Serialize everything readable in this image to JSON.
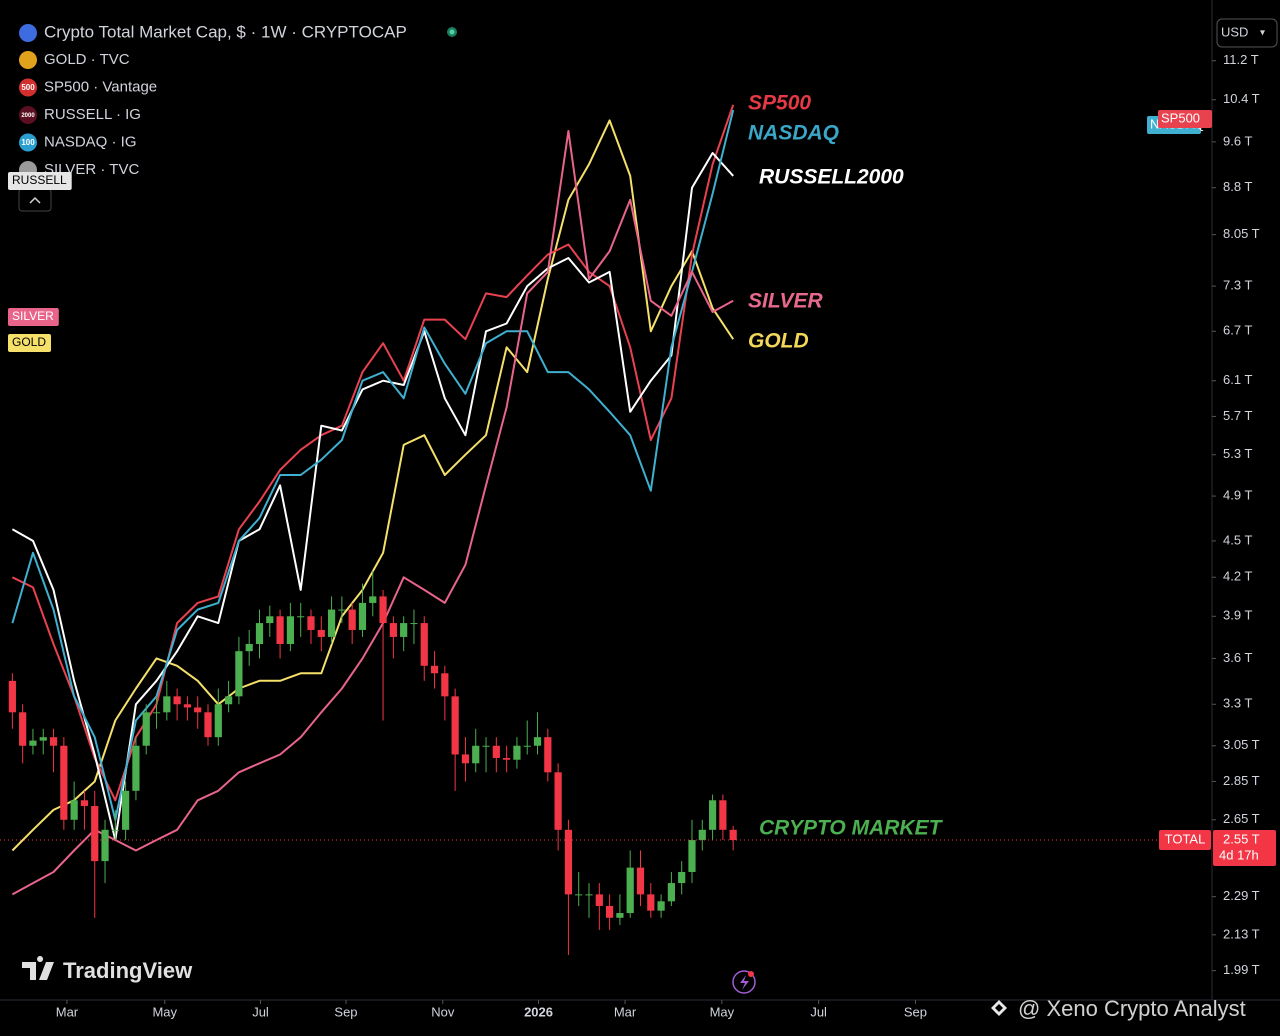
{
  "chart_data": {
    "type": "candlestick",
    "title": "Crypto Total Market Cap, $ · 1W · CRYPTOCAP",
    "currency": "USD",
    "log_scale": true,
    "up_color": "#4caf50",
    "down_color": "#f23645",
    "ylim": [
      1.9,
      12.1
    ],
    "yticks": [
      {
        "value": 11.2,
        "label": "11.2 T"
      },
      {
        "value": 10.4,
        "label": "10.4 T"
      },
      {
        "value": 9.6,
        "label": "9.6 T"
      },
      {
        "value": 8.8,
        "label": "8.8 T"
      },
      {
        "value": 8.05,
        "label": "8.05 T"
      },
      {
        "value": 7.3,
        "label": "7.3 T"
      },
      {
        "value": 6.7,
        "label": "6.7 T"
      },
      {
        "value": 6.1,
        "label": "6.1 T"
      },
      {
        "value": 5.7,
        "label": "5.7 T"
      },
      {
        "value": 5.3,
        "label": "5.3 T"
      },
      {
        "value": 4.9,
        "label": "4.9 T"
      },
      {
        "value": 4.5,
        "label": "4.5 T"
      },
      {
        "value": 4.2,
        "label": "4.2 T"
      },
      {
        "value": 3.9,
        "label": "3.9 T"
      },
      {
        "value": 3.6,
        "label": "3.6 T"
      },
      {
        "value": 3.3,
        "label": "3.3 T"
      },
      {
        "value": 3.05,
        "label": "3.05 T"
      },
      {
        "value": 2.85,
        "label": "2.85 T"
      },
      {
        "value": 2.65,
        "label": "2.65 T"
      },
      {
        "value": 2.29,
        "label": "2.29 T"
      },
      {
        "value": 2.13,
        "label": "2.13 T"
      },
      {
        "value": 1.99,
        "label": "1.99 T"
      }
    ],
    "xlim": [
      -1.2,
      116.5
    ],
    "xticks": [
      {
        "value": 5.3,
        "label": "Mar"
      },
      {
        "value": 14.8,
        "label": "May"
      },
      {
        "value": 24.1,
        "label": "Jul"
      },
      {
        "value": 32.4,
        "label": "Sep"
      },
      {
        "value": 41.8,
        "label": "Nov"
      },
      {
        "value": 51.1,
        "label": "2026"
      },
      {
        "value": 59.5,
        "label": "Mar"
      },
      {
        "value": 68.9,
        "label": "May"
      },
      {
        "value": 78.3,
        "label": "Jul"
      },
      {
        "value": 87.7,
        "label": "Sep"
      }
    ],
    "last_price": {
      "value": 2.55,
      "label": "2.55 T"
    },
    "last_name": "TOTAL",
    "countdown": "4d 17h",
    "x": [
      0,
      1,
      2,
      3,
      4,
      5,
      6,
      7,
      8,
      9,
      10,
      11,
      12,
      13,
      14,
      15,
      16,
      17,
      18,
      19,
      20,
      21,
      22,
      23,
      24,
      25,
      26,
      27,
      28,
      29,
      30,
      31,
      32,
      33,
      34,
      35,
      36,
      37,
      38,
      39,
      40,
      41,
      42,
      43,
      44,
      45,
      46,
      47,
      48,
      49,
      50,
      51,
      52,
      53,
      54,
      55,
      56,
      57,
      58,
      59,
      60,
      61,
      62,
      63,
      64,
      65,
      66,
      67,
      68,
      69,
      70
    ],
    "open": [
      3.45,
      3.25,
      3.05,
      3.08,
      3.1,
      3.05,
      2.65,
      2.75,
      2.72,
      2.45,
      2.6,
      2.6,
      2.8,
      3.05,
      3.25,
      3.25,
      3.35,
      3.3,
      3.28,
      3.25,
      3.1,
      3.3,
      3.35,
      3.65,
      3.7,
      3.85,
      3.9,
      3.7,
      3.9,
      3.9,
      3.8,
      3.75,
      3.95,
      3.95,
      3.8,
      4.0,
      4.05,
      3.85,
      3.75,
      3.85,
      3.85,
      3.55,
      3.5,
      3.35,
      3.0,
      2.95,
      3.05,
      3.05,
      2.98,
      2.97,
      3.05,
      3.05,
      3.1,
      2.9,
      2.6,
      2.3,
      2.3,
      2.3,
      2.25,
      2.2,
      2.22,
      2.42,
      2.3,
      2.23,
      2.27,
      2.35,
      2.4,
      2.55,
      2.6,
      2.75,
      2.6
    ],
    "high": [
      3.5,
      3.3,
      3.15,
      3.15,
      3.15,
      3.1,
      2.85,
      2.8,
      2.8,
      2.65,
      2.7,
      2.85,
      3.1,
      3.3,
      3.35,
      3.45,
      3.4,
      3.35,
      3.35,
      3.3,
      3.4,
      3.45,
      3.75,
      3.8,
      3.95,
      3.98,
      3.95,
      4.0,
      4.0,
      3.95,
      3.9,
      4.05,
      4.05,
      4.0,
      4.15,
      4.25,
      4.1,
      3.9,
      3.9,
      3.95,
      3.9,
      3.65,
      3.55,
      3.4,
      3.1,
      3.15,
      3.1,
      3.1,
      3.05,
      3.1,
      3.2,
      3.25,
      3.15,
      2.95,
      2.65,
      2.4,
      2.35,
      2.35,
      2.3,
      2.3,
      2.5,
      2.5,
      2.35,
      2.3,
      2.4,
      2.45,
      2.65,
      2.65,
      2.78,
      2.78,
      2.62
    ],
    "low": [
      3.15,
      2.95,
      3.0,
      3.0,
      2.9,
      2.6,
      2.6,
      2.6,
      2.2,
      2.35,
      2.55,
      2.55,
      2.75,
      3.0,
      3.15,
      3.2,
      3.2,
      3.2,
      3.15,
      3.05,
      3.05,
      3.25,
      3.3,
      3.55,
      3.6,
      3.75,
      3.6,
      3.65,
      3.75,
      3.7,
      3.65,
      3.7,
      3.85,
      3.7,
      3.75,
      3.9,
      3.2,
      3.6,
      3.65,
      3.7,
      3.45,
      3.4,
      3.2,
      2.8,
      2.85,
      2.9,
      2.9,
      2.9,
      2.9,
      2.92,
      3.0,
      3.0,
      2.85,
      2.5,
      2.05,
      2.25,
      2.2,
      2.15,
      2.15,
      2.17,
      2.2,
      2.25,
      2.2,
      2.2,
      2.25,
      2.3,
      2.35,
      2.5,
      2.55,
      2.55,
      2.5
    ],
    "close": [
      3.25,
      3.05,
      3.08,
      3.1,
      3.05,
      2.65,
      2.75,
      2.72,
      2.45,
      2.6,
      2.6,
      2.8,
      3.05,
      3.25,
      3.25,
      3.35,
      3.3,
      3.28,
      3.25,
      3.1,
      3.3,
      3.35,
      3.65,
      3.7,
      3.85,
      3.9,
      3.7,
      3.9,
      3.9,
      3.8,
      3.75,
      3.95,
      3.95,
      3.8,
      4.0,
      4.05,
      3.85,
      3.75,
      3.85,
      3.85,
      3.55,
      3.5,
      3.35,
      3.0,
      2.95,
      3.05,
      3.05,
      2.98,
      2.97,
      3.05,
      3.05,
      3.1,
      2.9,
      2.6,
      2.3,
      2.3,
      2.3,
      2.25,
      2.2,
      2.22,
      2.42,
      2.3,
      2.23,
      2.27,
      2.35,
      2.4,
      2.55,
      2.6,
      2.75,
      2.6,
      2.55
    ],
    "series": [
      {
        "name": "GOLD · TVC",
        "color": "#f5e06a",
        "icon_color": "#e0a21d",
        "x": [
          0,
          2,
          4,
          6,
          8,
          10,
          12,
          14,
          16,
          18,
          20,
          22,
          24,
          26,
          28,
          30,
          32,
          34,
          36,
          38,
          40,
          42,
          44,
          46,
          48,
          50,
          52,
          54,
          56,
          58,
          60,
          62,
          64,
          66,
          68,
          70
        ],
        "values": [
          2.5,
          2.6,
          2.7,
          2.75,
          2.85,
          3.2,
          3.4,
          3.6,
          3.55,
          3.45,
          3.3,
          3.4,
          3.45,
          3.45,
          3.5,
          3.5,
          3.9,
          4.1,
          4.4,
          5.4,
          5.5,
          5.1,
          5.3,
          5.5,
          6.5,
          6.2,
          7.4,
          8.6,
          9.2,
          10.0,
          9.0,
          6.7,
          7.3,
          7.8,
          7.0,
          6.6
        ]
      },
      {
        "name": "SP500 · Vantage",
        "color": "#e8424f",
        "icon_color": "#d32f2f",
        "icon_text": "500",
        "x": [
          0,
          2,
          4,
          6,
          8,
          10,
          12,
          14,
          16,
          18,
          20,
          22,
          24,
          26,
          28,
          30,
          32,
          34,
          36,
          38,
          40,
          42,
          44,
          46,
          48,
          50,
          52,
          54,
          56,
          58,
          60,
          62,
          64,
          66,
          68,
          70
        ],
        "values": [
          4.2,
          4.12,
          3.7,
          3.35,
          2.98,
          2.75,
          3.1,
          3.3,
          3.85,
          4.0,
          4.05,
          4.6,
          4.85,
          5.15,
          5.35,
          5.5,
          5.6,
          6.2,
          6.55,
          6.1,
          6.85,
          6.85,
          6.6,
          7.2,
          7.15,
          7.45,
          7.75,
          7.9,
          7.5,
          7.3,
          6.5,
          5.45,
          5.9,
          7.75,
          9.2,
          10.3
        ]
      },
      {
        "name": "RUSSELL · IG",
        "color": "#ffffff",
        "icon_color": "#5a1020",
        "icon_text": "2000",
        "x": [
          0,
          2,
          4,
          6,
          8,
          10,
          12,
          14,
          16,
          18,
          20,
          22,
          24,
          26,
          28,
          30,
          32,
          34,
          36,
          38,
          40,
          42,
          44,
          46,
          48,
          50,
          52,
          54,
          56,
          58,
          60,
          62,
          64,
          66,
          68,
          70
        ],
        "values": [
          4.6,
          4.5,
          4.1,
          3.45,
          3.0,
          2.55,
          3.3,
          3.45,
          3.65,
          3.9,
          3.85,
          4.5,
          4.6,
          5.0,
          4.1,
          5.6,
          5.55,
          6.0,
          6.1,
          6.05,
          6.7,
          5.9,
          5.5,
          6.7,
          6.8,
          7.3,
          7.55,
          7.7,
          7.35,
          7.5,
          5.75,
          6.1,
          6.4,
          8.8,
          9.4,
          9.0
        ]
      },
      {
        "name": "NASDAQ · IG",
        "color": "#3fb0d0",
        "icon_color": "#2a9fd0",
        "icon_text": "100",
        "x": [
          0,
          2,
          4,
          6,
          8,
          10,
          12,
          14,
          16,
          18,
          20,
          22,
          24,
          26,
          28,
          30,
          32,
          34,
          36,
          38,
          40,
          42,
          44,
          46,
          48,
          50,
          52,
          54,
          56,
          58,
          60,
          62,
          64,
          66,
          68,
          70
        ],
        "values": [
          3.85,
          4.4,
          3.95,
          3.35,
          3.1,
          2.65,
          3.2,
          3.35,
          3.8,
          3.95,
          4.0,
          4.5,
          4.7,
          5.1,
          5.1,
          5.25,
          5.45,
          6.1,
          6.2,
          5.9,
          6.75,
          6.3,
          5.95,
          6.55,
          6.7,
          6.7,
          6.2,
          6.2,
          6.0,
          5.75,
          5.5,
          4.95,
          6.5,
          7.5,
          8.7,
          10.2
        ]
      },
      {
        "name": "SILVER · TVC",
        "color": "#e8648a",
        "icon_color": "#9a9a9a",
        "x": [
          0,
          2,
          4,
          6,
          8,
          10,
          12,
          14,
          16,
          18,
          20,
          22,
          24,
          26,
          28,
          30,
          32,
          34,
          36,
          38,
          40,
          42,
          44,
          46,
          48,
          50,
          52,
          54,
          56,
          58,
          60,
          62,
          64,
          66,
          68,
          70
        ],
        "values": [
          2.3,
          2.35,
          2.4,
          2.5,
          2.6,
          2.55,
          2.5,
          2.55,
          2.6,
          2.75,
          2.8,
          2.9,
          2.95,
          3.0,
          3.1,
          3.25,
          3.4,
          3.6,
          3.85,
          4.2,
          4.1,
          4.0,
          4.3,
          5.0,
          5.8,
          7.2,
          7.5,
          9.8,
          7.4,
          7.8,
          8.6,
          7.1,
          6.9,
          7.5,
          6.95,
          7.1
        ]
      }
    ],
    "annotations": [
      {
        "text": "SP500",
        "color": "#e53945"
      },
      {
        "text": "NASDAQ",
        "color": "#3aa7c9"
      },
      {
        "text": "RUSSELL2000",
        "color": "#ffffff"
      },
      {
        "text": "SILVER",
        "color": "#e66a8d"
      },
      {
        "text": "GOLD",
        "color": "#f3d75a"
      },
      {
        "text": "CRYPTO MARKET",
        "color": "#4caf50"
      }
    ],
    "left_badges": [
      "RUSSELL",
      "SILVER",
      "GOLD"
    ],
    "right_badges": [
      "NASDAQ",
      "SP500"
    ],
    "logo": "TradingView",
    "watermark": "@ Xeno Crypto Analyst"
  }
}
